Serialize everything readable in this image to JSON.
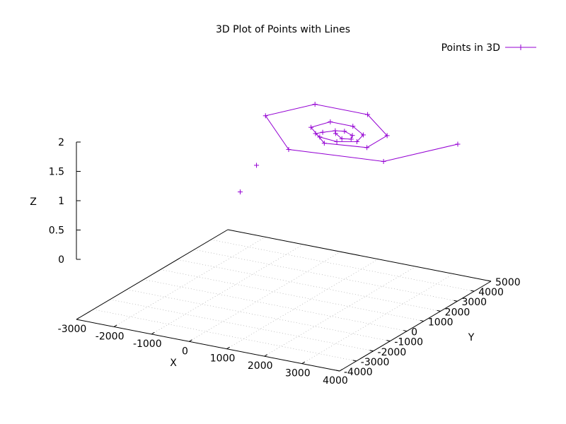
{
  "chart_data": {
    "type": "line",
    "title": "3D Plot of Points with Lines",
    "xlabel": "X",
    "ylabel": "Y",
    "zlabel": "Z",
    "xlim": [
      -3000,
      4000
    ],
    "ylim": [
      -4000,
      5000
    ],
    "zlim": [
      0,
      2
    ],
    "x_ticks": [
      "-3000",
      "-2000",
      "-1000",
      "0",
      "1000",
      "2000",
      "3000",
      "4000"
    ],
    "y_ticks": [
      "-4000",
      "-3000",
      "-2000",
      "-1000",
      "0",
      "1000",
      "2000",
      "3000",
      "4000",
      "5000"
    ],
    "z_ticks": [
      "0",
      "0.5",
      "1",
      "1.5",
      "2"
    ],
    "grid": true,
    "legend_position": "top-right",
    "series_color": "#9400d3",
    "series": [
      {
        "name": "Points in 3D",
        "x": [
          1300,
          1600,
          1800,
          1700,
          1400,
          1200,
          1000,
          900,
          1100,
          1600,
          2000,
          1900,
          1400,
          800,
          600,
          1400,
          2400,
          2400,
          1300,
          -100,
          -700,
          900,
          3200,
          4100
        ],
        "y": [
          1800,
          1500,
          1600,
          1900,
          2100,
          2000,
          1700,
          1500,
          1300,
          1200,
          1500,
          2100,
          2600,
          2600,
          1900,
          900,
          1200,
          2400,
          3700,
          3700,
          2100,
          -100,
          400,
          2800
        ],
        "z": [
          1.7,
          1.7,
          1.7,
          1.7,
          1.7,
          1.7,
          1.7,
          1.7,
          1.7,
          1.7,
          1.7,
          1.7,
          1.7,
          1.7,
          1.7,
          1.7,
          1.7,
          1.7,
          1.7,
          1.7,
          1.7,
          1.7,
          1.7,
          1.7
        ]
      },
      {
        "name": "",
        "x": [
          0
        ],
        "y": [
          0
        ],
        "z": [
          1.3
        ]
      },
      {
        "name": "",
        "x": [
          -2000
        ],
        "y": [
          3500
        ],
        "z": [
          0
        ]
      }
    ]
  }
}
